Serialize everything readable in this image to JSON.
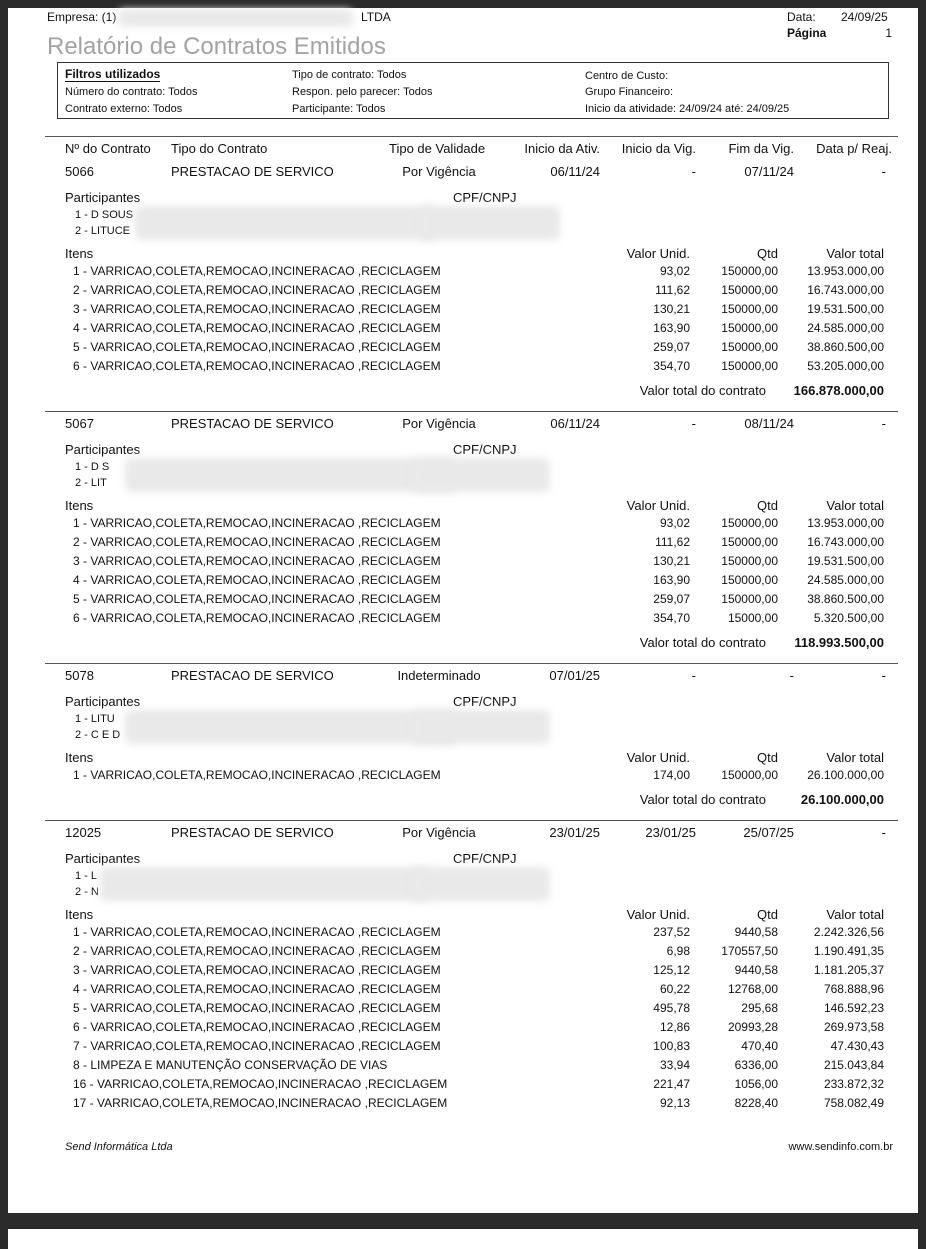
{
  "header": {
    "empresa_label": "Empresa: (1)",
    "empresa_suffix": "LTDA",
    "data_label": "Data:",
    "data_value": "24/09/25",
    "pagina_label": "Página",
    "pagina_value": "1",
    "title": "Relatório de Contratos Emitidos"
  },
  "filters": {
    "heading": "Filtros utilizados",
    "numero_contrato": "Número do contrato: Todos",
    "contrato_externo": "Contrato externo: Todos",
    "tipo_contrato": "Tipo de contrato: Todos",
    "respon_parecer": "Respon. pelo parecer: Todos",
    "participante": "Participante: Todos",
    "centro_custo": "Centro de Custo:",
    "grupo_financeiro": "Grupo Financeiro:",
    "inicio_atividade": "Inicio da atividade: 24/09/24 até: 24/09/25"
  },
  "columns": [
    "Nº do Contrato",
    "Tipo do Contrato",
    "Tipo de Validade",
    "Inicio da Ativ.",
    "Inicio da Vig.",
    "Fim da Vig.",
    "Data p/ Reaj."
  ],
  "labels": {
    "participantes": "Participantes",
    "cpf_cnpj": "CPF/CNPJ",
    "itens": "Itens",
    "valor_unid": "Valor Unid.",
    "qtd": "Qtd",
    "valor_total": "Valor total",
    "valor_total_contrato": "Valor total do contrato"
  },
  "contracts": [
    {
      "numero": "5066",
      "tipo": "PRESTACAO DE SERVICO",
      "validade": "Por Vigência",
      "inicio_ativ": "06/11/24",
      "inicio_vig": "-",
      "fim_vig": "07/11/24",
      "data_reaj": "-",
      "participantes": [
        "1 - D SOUS",
        "2 - LITUCE"
      ],
      "itens": [
        {
          "desc": "1 - VARRICAO,COLETA,REMOCAO,INCINERACAO ,RECICLAGEM",
          "unit": "93,02",
          "qtd": "150000,00",
          "total": "13.953.000,00"
        },
        {
          "desc": "2 - VARRICAO,COLETA,REMOCAO,INCINERACAO ,RECICLAGEM",
          "unit": "111,62",
          "qtd": "150000,00",
          "total": "16.743.000,00"
        },
        {
          "desc": "3 - VARRICAO,COLETA,REMOCAO,INCINERACAO ,RECICLAGEM",
          "unit": "130,21",
          "qtd": "150000,00",
          "total": "19.531.500,00"
        },
        {
          "desc": "4 - VARRICAO,COLETA,REMOCAO,INCINERACAO ,RECICLAGEM",
          "unit": "163,90",
          "qtd": "150000,00",
          "total": "24.585.000,00"
        },
        {
          "desc": "5 - VARRICAO,COLETA,REMOCAO,INCINERACAO ,RECICLAGEM",
          "unit": "259,07",
          "qtd": "150000,00",
          "total": "38.860.500,00"
        },
        {
          "desc": "6 - VARRICAO,COLETA,REMOCAO,INCINERACAO ,RECICLAGEM",
          "unit": "354,70",
          "qtd": "150000,00",
          "total": "53.205.000,00"
        }
      ],
      "valor_total": "166.878.000,00"
    },
    {
      "numero": "5067",
      "tipo": "PRESTACAO DE SERVICO",
      "validade": "Por Vigência",
      "inicio_ativ": "06/11/24",
      "inicio_vig": "-",
      "fim_vig": "08/11/24",
      "data_reaj": "-",
      "participantes": [
        "1 - D S",
        "2 - LIT"
      ],
      "itens": [
        {
          "desc": "1 - VARRICAO,COLETA,REMOCAO,INCINERACAO ,RECICLAGEM",
          "unit": "93,02",
          "qtd": "150000,00",
          "total": "13.953.000,00"
        },
        {
          "desc": "2 - VARRICAO,COLETA,REMOCAO,INCINERACAO ,RECICLAGEM",
          "unit": "111,62",
          "qtd": "150000,00",
          "total": "16.743.000,00"
        },
        {
          "desc": "3 - VARRICAO,COLETA,REMOCAO,INCINERACAO ,RECICLAGEM",
          "unit": "130,21",
          "qtd": "150000,00",
          "total": "19.531.500,00"
        },
        {
          "desc": "4 - VARRICAO,COLETA,REMOCAO,INCINERACAO ,RECICLAGEM",
          "unit": "163,90",
          "qtd": "150000,00",
          "total": "24.585.000,00"
        },
        {
          "desc": "5 - VARRICAO,COLETA,REMOCAO,INCINERACAO ,RECICLAGEM",
          "unit": "259,07",
          "qtd": "150000,00",
          "total": "38.860.500,00"
        },
        {
          "desc": "6 - VARRICAO,COLETA,REMOCAO,INCINERACAO ,RECICLAGEM",
          "unit": "354,70",
          "qtd": "15000,00",
          "total": "5.320.500,00"
        }
      ],
      "valor_total": "118.993.500,00"
    },
    {
      "numero": "5078",
      "tipo": "PRESTACAO DE SERVICO",
      "validade": "Indeterminado",
      "inicio_ativ": "07/01/25",
      "inicio_vig": "-",
      "fim_vig": "-",
      "data_reaj": "-",
      "participantes": [
        "1 - LITU",
        "2 - C E D"
      ],
      "itens": [
        {
          "desc": "1 - VARRICAO,COLETA,REMOCAO,INCINERACAO ,RECICLAGEM",
          "unit": "174,00",
          "qtd": "150000,00",
          "total": "26.100.000,00"
        }
      ],
      "valor_total": "26.100.000,00"
    },
    {
      "numero": "12025",
      "tipo": "PRESTACAO DE SERVICO",
      "validade": "Por Vigência",
      "inicio_ativ": "23/01/25",
      "inicio_vig": "23/01/25",
      "fim_vig": "25/07/25",
      "data_reaj": "-",
      "participantes": [
        "1 - L",
        "2 - N"
      ],
      "itens": [
        {
          "desc": "1 - VARRICAO,COLETA,REMOCAO,INCINERACAO ,RECICLAGEM",
          "unit": "237,52",
          "qtd": "9440,58",
          "total": "2.242.326,56"
        },
        {
          "desc": "2 - VARRICAO,COLETA,REMOCAO,INCINERACAO ,RECICLAGEM",
          "unit": "6,98",
          "qtd": "170557,50",
          "total": "1.190.491,35"
        },
        {
          "desc": "3 - VARRICAO,COLETA,REMOCAO,INCINERACAO ,RECICLAGEM",
          "unit": "125,12",
          "qtd": "9440,58",
          "total": "1.181.205,37"
        },
        {
          "desc": "4 - VARRICAO,COLETA,REMOCAO,INCINERACAO ,RECICLAGEM",
          "unit": "60,22",
          "qtd": "12768,00",
          "total": "768.888,96"
        },
        {
          "desc": "5 - VARRICAO,COLETA,REMOCAO,INCINERACAO ,RECICLAGEM",
          "unit": "495,78",
          "qtd": "295,68",
          "total": "146.592,23"
        },
        {
          "desc": "6 - VARRICAO,COLETA,REMOCAO,INCINERACAO ,RECICLAGEM",
          "unit": "12,86",
          "qtd": "20993,28",
          "total": "269.973,58"
        },
        {
          "desc": "7 - VARRICAO,COLETA,REMOCAO,INCINERACAO ,RECICLAGEM",
          "unit": "100,83",
          "qtd": "470,40",
          "total": "47.430,43"
        },
        {
          "desc": "8 - LIMPEZA E MANUTENÇÃO CONSERVAÇÃO DE VIAS",
          "unit": "33,94",
          "qtd": "6336,00",
          "total": "215.043,84"
        },
        {
          "desc": "16 - VARRICAO,COLETA,REMOCAO,INCINERACAO ,RECICLAGEM",
          "unit": "221,47",
          "qtd": "1056,00",
          "total": "233.872,32"
        },
        {
          "desc": "17 - VARRICAO,COLETA,REMOCAO,INCINERACAO ,RECICLAGEM",
          "unit": "92,13",
          "qtd": "8228,40",
          "total": "758.082,49"
        }
      ]
    }
  ],
  "footer": {
    "company": "Send Informática Ltda",
    "website": "www.sendinfo.com.br"
  },
  "colors": {
    "background": "#2b2b2b",
    "page": "#ffffff",
    "title": "#a3a3a3"
  }
}
